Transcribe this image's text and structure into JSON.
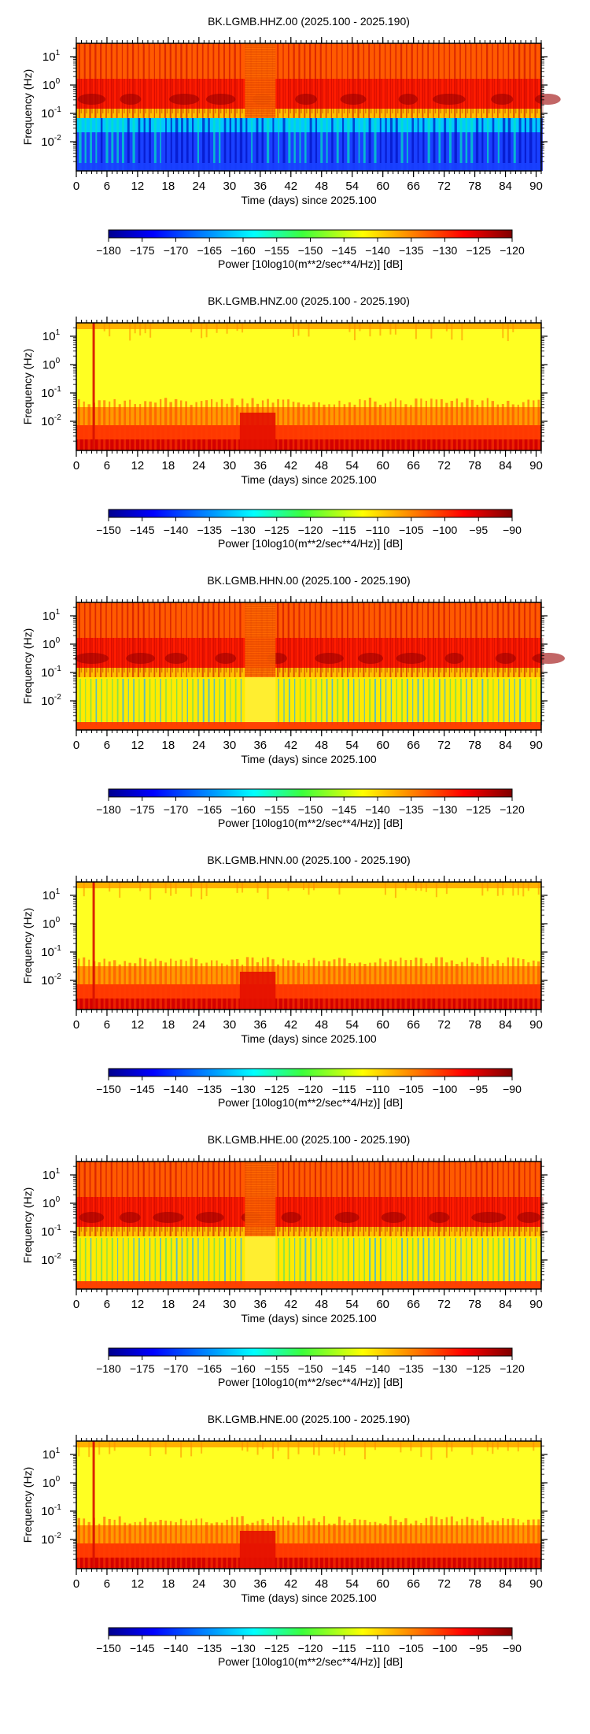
{
  "chart_data": [
    {
      "type": "heatmap",
      "title": "BK.LGMB.HHZ.00 (2025.100 - 2025.190)",
      "xlabel": "Time (days) since 2025.100",
      "ylabel": "Frequency (Hz)",
      "xlim": [
        0,
        91
      ],
      "x_ticks": [
        0,
        6,
        12,
        18,
        24,
        30,
        36,
        42,
        48,
        54,
        60,
        66,
        72,
        78,
        84,
        90
      ],
      "y_scale": "log",
      "y_ticks": [
        "10^1",
        "10^0",
        "10^-1",
        "10^-2"
      ],
      "colorbar": {
        "ticks": [
          -180,
          -175,
          -170,
          -165,
          -160,
          -155,
          -150,
          -145,
          -140,
          -135,
          -130,
          -125,
          -120
        ],
        "label": "Power [10log10(m**2/sec**4/Hz)] [dB]"
      },
      "palette": "hi"
    },
    {
      "type": "heatmap",
      "title": "BK.LGMB.HNZ.00 (2025.100 - 2025.190)",
      "xlabel": "Time (days) since 2025.100",
      "ylabel": "Frequency (Hz)",
      "xlim": [
        0,
        91
      ],
      "x_ticks": [
        0,
        6,
        12,
        18,
        24,
        30,
        36,
        42,
        48,
        54,
        60,
        66,
        72,
        78,
        84,
        90
      ],
      "y_scale": "log",
      "y_ticks": [
        "10^1",
        "10^0",
        "10^-1",
        "10^-2"
      ],
      "colorbar": {
        "ticks": [
          -150,
          -145,
          -140,
          -135,
          -130,
          -125,
          -120,
          -115,
          -110,
          -105,
          -100,
          -95,
          -90
        ],
        "label": "Power [10log10(m**2/sec**4/Hz)] [dB]"
      },
      "palette": "hn"
    },
    {
      "type": "heatmap",
      "title": "BK.LGMB.HHN.00 (2025.100 - 2025.190)",
      "xlabel": "Time (days) since 2025.100",
      "ylabel": "Frequency (Hz)",
      "xlim": [
        0,
        91
      ],
      "x_ticks": [
        0,
        6,
        12,
        18,
        24,
        30,
        36,
        42,
        48,
        54,
        60,
        66,
        72,
        78,
        84,
        90
      ],
      "y_scale": "log",
      "y_ticks": [
        "10^1",
        "10^0",
        "10^-1",
        "10^-2"
      ],
      "colorbar": {
        "ticks": [
          -180,
          -175,
          -170,
          -165,
          -160,
          -155,
          -150,
          -145,
          -140,
          -135,
          -130,
          -125,
          -120
        ],
        "label": "Power [10log10(m**2/sec**4/Hz)] [dB]"
      },
      "palette": "hh"
    },
    {
      "type": "heatmap",
      "title": "BK.LGMB.HNN.00 (2025.100 - 2025.190)",
      "xlabel": "Time (days) since 2025.100",
      "ylabel": "Frequency (Hz)",
      "xlim": [
        0,
        91
      ],
      "x_ticks": [
        0,
        6,
        12,
        18,
        24,
        30,
        36,
        42,
        48,
        54,
        60,
        66,
        72,
        78,
        84,
        90
      ],
      "y_scale": "log",
      "y_ticks": [
        "10^1",
        "10^0",
        "10^-1",
        "10^-2"
      ],
      "colorbar": {
        "ticks": [
          -150,
          -145,
          -140,
          -135,
          -130,
          -125,
          -120,
          -115,
          -110,
          -105,
          -100,
          -95,
          -90
        ],
        "label": "Power [10log10(m**2/sec**4/Hz)] [dB]"
      },
      "palette": "hn"
    },
    {
      "type": "heatmap",
      "title": "BK.LGMB.HHE.00 (2025.100 - 2025.190)",
      "xlabel": "Time (days) since 2025.100",
      "ylabel": "Frequency (Hz)",
      "xlim": [
        0,
        91
      ],
      "x_ticks": [
        0,
        6,
        12,
        18,
        24,
        30,
        36,
        42,
        48,
        54,
        60,
        66,
        72,
        78,
        84,
        90
      ],
      "y_scale": "log",
      "y_ticks": [
        "10^1",
        "10^0",
        "10^-1",
        "10^-2"
      ],
      "colorbar": {
        "ticks": [
          -180,
          -175,
          -170,
          -165,
          -160,
          -155,
          -150,
          -145,
          -140,
          -135,
          -130,
          -125,
          -120
        ],
        "label": "Power [10log10(m**2/sec**4/Hz)] [dB]"
      },
      "palette": "hh"
    },
    {
      "type": "heatmap",
      "title": "BK.LGMB.HNE.00 (2025.100 - 2025.190)",
      "xlabel": "Time (days) since 2025.100",
      "ylabel": "Frequency (Hz)",
      "xlim": [
        0,
        91
      ],
      "x_ticks": [
        0,
        6,
        12,
        18,
        24,
        30,
        36,
        42,
        48,
        54,
        60,
        66,
        72,
        78,
        84,
        90
      ],
      "y_scale": "log",
      "y_ticks": [
        "10^1",
        "10^0",
        "10^-1",
        "10^-2"
      ],
      "colorbar": {
        "ticks": [
          -150,
          -145,
          -140,
          -135,
          -130,
          -125,
          -120,
          -115,
          -110,
          -105,
          -100,
          -95,
          -90
        ],
        "label": "Power [10log10(m**2/sec**4/Hz)] [dB]"
      },
      "palette": "hn"
    }
  ]
}
